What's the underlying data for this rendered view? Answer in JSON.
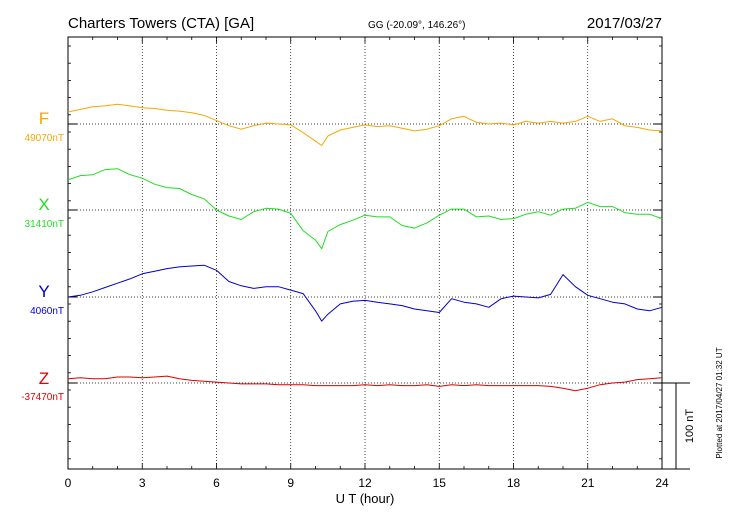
{
  "header": {
    "station": "Charters Towers (CTA)  [GA]",
    "coords": "GG (-20.09°, 146.26°)",
    "date": "2017/03/27"
  },
  "plotted_note": "Plotted at 2017/04/27 01:32 UT",
  "scale_label": "100 nT",
  "colors": {
    "F": "#f5a800",
    "X": "#22dd22",
    "Y": "#0000cc",
    "Z": "#dd0000"
  },
  "chart_data": {
    "type": "line",
    "xlabel": "U T (hour)",
    "xlim": [
      0,
      24
    ],
    "x_ticks": [
      0,
      3,
      6,
      9,
      12,
      15,
      18,
      21,
      24
    ],
    "x_tick_labels": [
      "0",
      "3",
      "6",
      "9",
      "12",
      "15",
      "18",
      "21",
      "24"
    ],
    "grid": true,
    "scale_bar_nT": 100,
    "series": [
      {
        "name": "F",
        "key": "F",
        "baseline_label": "49070nT",
        "baseline_nT": 49070,
        "x": [
          0,
          0.5,
          1,
          1.5,
          2,
          2.5,
          3,
          3.5,
          4,
          4.5,
          5,
          5.5,
          6,
          6.5,
          7,
          7.5,
          8,
          8.5,
          9,
          9.5,
          10,
          10.25,
          10.5,
          11,
          11.5,
          12,
          12.5,
          13,
          13.5,
          14,
          14.5,
          15,
          15.5,
          16,
          16.5,
          17,
          17.5,
          18,
          18.5,
          19,
          19.5,
          20,
          20.5,
          21,
          21.5,
          22,
          22.5,
          23,
          23.5,
          24
        ],
        "values": [
          49084,
          49087,
          49090,
          49091,
          49093,
          49091,
          49089,
          49088,
          49086,
          49085,
          49083,
          49080,
          49074,
          49068,
          49064,
          49068,
          49071,
          49070,
          49069,
          49060,
          49050,
          49045,
          49056,
          49063,
          49066,
          49069,
          49067,
          49068,
          49065,
          49062,
          49064,
          49068,
          49076,
          49079,
          49072,
          49070,
          49071,
          49069,
          49073,
          49071,
          49073,
          49071,
          49073,
          49079,
          49073,
          49076,
          49068,
          49066,
          49063,
          49062
        ]
      },
      {
        "name": "X",
        "key": "X",
        "baseline_label": "31410nT",
        "baseline_nT": 31410,
        "x": [
          0,
          0.5,
          1,
          1.5,
          2,
          2.5,
          3,
          3.5,
          4,
          4.5,
          5,
          5.5,
          6,
          6.5,
          7,
          7.5,
          8,
          8.5,
          9,
          9.5,
          10,
          10.25,
          10.5,
          11,
          11.5,
          12,
          12.5,
          13,
          13.5,
          14,
          14.5,
          15,
          15.5,
          16,
          16.5,
          17,
          17.5,
          18,
          18.5,
          19,
          19.5,
          20,
          20.5,
          21,
          21.5,
          22,
          22.5,
          23,
          23.5,
          24
        ],
        "values": [
          31445,
          31450,
          31451,
          31457,
          31458,
          31451,
          31447,
          31440,
          31436,
          31435,
          31428,
          31423,
          31410,
          31403,
          31399,
          31408,
          31412,
          31411,
          31406,
          31386,
          31375,
          31365,
          31385,
          31393,
          31398,
          31404,
          31402,
          31402,
          31392,
          31389,
          31395,
          31404,
          31411,
          31411,
          31402,
          31403,
          31399,
          31400,
          31405,
          31408,
          31404,
          31411,
          31412,
          31419,
          31414,
          31414,
          31407,
          31405,
          31405,
          31400
        ]
      },
      {
        "name": "Y",
        "key": "Y",
        "baseline_label": "4060nT",
        "baseline_nT": 4060,
        "x": [
          0,
          0.5,
          1,
          1.5,
          2,
          2.5,
          3,
          3.5,
          4,
          4.5,
          5,
          5.5,
          6,
          6.5,
          7,
          7.5,
          8,
          8.5,
          9,
          9.5,
          10,
          10.25,
          10.5,
          11,
          11.5,
          12,
          12.5,
          13,
          13.5,
          14,
          14.5,
          15,
          15.5,
          16,
          16.5,
          17,
          17.5,
          18,
          18.5,
          19,
          19.5,
          20,
          20.5,
          21,
          21.5,
          22,
          22.5,
          23,
          23.5,
          24
        ],
        "values": [
          4060,
          4062,
          4066,
          4071,
          4076,
          4081,
          4087,
          4090,
          4093,
          4095,
          4096,
          4097,
          4091,
          4078,
          4073,
          4070,
          4072,
          4072,
          4068,
          4064,
          4044,
          4032,
          4040,
          4052,
          4055,
          4056,
          4054,
          4052,
          4050,
          4046,
          4044,
          4042,
          4058,
          4054,
          4052,
          4048,
          4058,
          4061,
          4060,
          4059,
          4063,
          4086,
          4072,
          4062,
          4058,
          4054,
          4052,
          4046,
          4044,
          4048
        ]
      },
      {
        "name": "Z",
        "key": "Z",
        "baseline_label": "-37470nT",
        "baseline_nT": -37470,
        "x": [
          0,
          0.5,
          1,
          1.5,
          2,
          2.5,
          3,
          3.5,
          4,
          4.5,
          5,
          5.5,
          6,
          6.5,
          7,
          7.5,
          8,
          8.5,
          9,
          9.5,
          10,
          10.5,
          11,
          11.5,
          12,
          12.5,
          13,
          13.5,
          14,
          14.5,
          15,
          15.5,
          16,
          16.5,
          17,
          17.5,
          18,
          18.5,
          19,
          19.5,
          20,
          20.5,
          21,
          21.5,
          22,
          22.5,
          23,
          23.5,
          24
        ],
        "values": [
          -37465,
          -37464,
          -37465,
          -37465,
          -37463,
          -37463,
          -37464,
          -37463,
          -37462,
          -37465,
          -37467,
          -37468,
          -37469,
          -37470,
          -37471,
          -37471,
          -37471,
          -37472,
          -37472,
          -37472,
          -37473,
          -37473,
          -37473,
          -37473,
          -37472,
          -37473,
          -37472,
          -37473,
          -37473,
          -37472,
          -37474,
          -37472,
          -37473,
          -37472,
          -37473,
          -37473,
          -37473,
          -37473,
          -37473,
          -37474,
          -37476,
          -37479,
          -37476,
          -37472,
          -37470,
          -37469,
          -37466,
          -37465,
          -37464
        ]
      }
    ]
  }
}
